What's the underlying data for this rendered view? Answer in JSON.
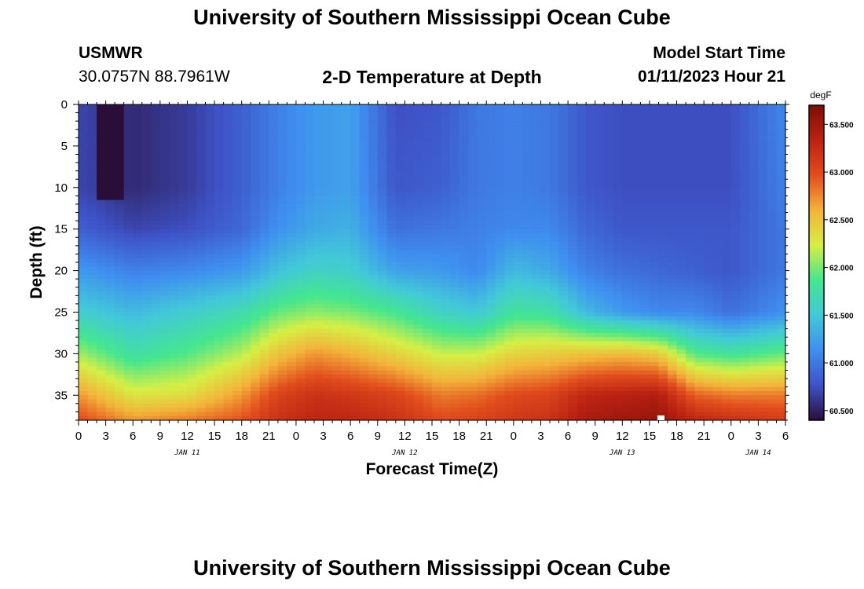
{
  "page": {
    "title": "University of Southern Mississippi Ocean Cube",
    "station": "USMWR",
    "coords": "30.0757N  88.7961W",
    "subtitle": "2-D Temperature at Depth",
    "model_start_label": "Model Start Time",
    "model_start_value": "01/11/2023 Hour 21",
    "bottom_title": "University of Southern Mississippi Ocean Cube"
  },
  "colors": {
    "ramp": [
      "#2a0e3a",
      "#3e52c6",
      "#3f8ef0",
      "#42c9d8",
      "#45e68e",
      "#d6ef45",
      "#f3b33a",
      "#e24d1d",
      "#bb2212",
      "#7f0d07"
    ]
  },
  "chart_data": {
    "type": "heatmap",
    "title": "2-D Temperature at Depth",
    "xlabel": "Forecast Time(Z)",
    "ylabel": "Depth (ft)",
    "x_tick_labels": [
      "0",
      "3",
      "6",
      "9",
      "12",
      "15",
      "18",
      "21",
      "0",
      "3",
      "6",
      "9",
      "12",
      "15",
      "18",
      "21",
      "0",
      "3",
      "6",
      "9",
      "12",
      "15",
      "18",
      "21",
      "0",
      "3",
      "6"
    ],
    "x_range_hours": [
      0,
      78
    ],
    "date_labels": [
      {
        "label": "JAN 11",
        "hour": 12
      },
      {
        "label": "JAN 12",
        "hour": 36
      },
      {
        "label": "JAN 13",
        "hour": 60
      },
      {
        "label": "JAN 14",
        "hour": 75
      }
    ],
    "y_ticks": [
      0,
      5,
      10,
      15,
      20,
      25,
      30,
      35
    ],
    "y_tick_labels": [
      "0",
      "5",
      "10",
      "15",
      "20",
      "25",
      "30",
      "35"
    ],
    "ylim": [
      0,
      38
    ],
    "colorbar": {
      "unit": "degF",
      "range": [
        60.4,
        63.7
      ],
      "ticks": [
        60.5,
        61.0,
        61.5,
        62.0,
        62.5,
        63.0,
        63.5
      ],
      "tick_labels": [
        "60.500",
        "61.000",
        "61.500",
        "62.000",
        "62.500",
        "63.000",
        "63.500"
      ]
    },
    "profile_hours": [
      0,
      6,
      12,
      18,
      22,
      26,
      30,
      35,
      40,
      44,
      48,
      52,
      56,
      60,
      64,
      68,
      72,
      78
    ],
    "profile_depths_ft": [
      0,
      10,
      15,
      20,
      25,
      30,
      35,
      38
    ],
    "profile_temps_degF": [
      [
        60.7,
        60.7,
        60.85,
        61.2,
        61.55,
        62.1,
        62.7,
        63.0
      ],
      [
        60.55,
        60.55,
        60.7,
        61.05,
        61.4,
        61.75,
        62.3,
        62.7
      ],
      [
        60.65,
        60.65,
        60.75,
        61.1,
        61.55,
        61.9,
        62.35,
        62.8
      ],
      [
        60.85,
        60.85,
        60.9,
        61.2,
        61.7,
        62.15,
        62.7,
        62.95
      ],
      [
        61.05,
        61.05,
        61.15,
        61.45,
        61.95,
        62.5,
        63.05,
        63.2
      ],
      [
        61.2,
        61.2,
        61.3,
        61.6,
        62.05,
        62.7,
        63.2,
        63.3
      ],
      [
        61.25,
        61.25,
        61.35,
        61.55,
        62.0,
        62.6,
        63.15,
        63.3
      ],
      [
        60.75,
        60.8,
        60.95,
        61.25,
        61.85,
        62.4,
        63.05,
        63.2
      ],
      [
        60.8,
        60.85,
        61.0,
        61.2,
        61.6,
        62.2,
        62.8,
        63.0
      ],
      [
        61.0,
        61.0,
        61.05,
        61.1,
        61.5,
        62.2,
        62.85,
        63.05
      ],
      [
        61.05,
        61.05,
        61.1,
        61.4,
        61.8,
        62.4,
        63.0,
        63.15
      ],
      [
        61.0,
        61.0,
        61.1,
        61.3,
        61.75,
        62.45,
        63.05,
        63.2
      ],
      [
        60.8,
        60.8,
        60.9,
        61.05,
        61.4,
        62.5,
        63.3,
        63.45
      ],
      [
        60.75,
        60.75,
        60.8,
        60.95,
        61.2,
        62.55,
        63.35,
        63.5
      ],
      [
        60.75,
        60.75,
        60.8,
        60.9,
        61.1,
        62.45,
        63.4,
        63.55
      ],
      [
        60.75,
        60.75,
        60.8,
        60.85,
        61.1,
        61.9,
        62.9,
        63.3
      ],
      [
        60.75,
        60.75,
        60.8,
        60.8,
        60.95,
        61.8,
        62.8,
        63.2
      ],
      [
        61.1,
        61.05,
        61.0,
        61.0,
        61.15,
        61.95,
        62.8,
        63.1
      ]
    ],
    "cold_core": {
      "hours": [
        2,
        5
      ],
      "depth_ft": [
        0,
        11.5
      ],
      "temp_degF": 60.4
    }
  }
}
